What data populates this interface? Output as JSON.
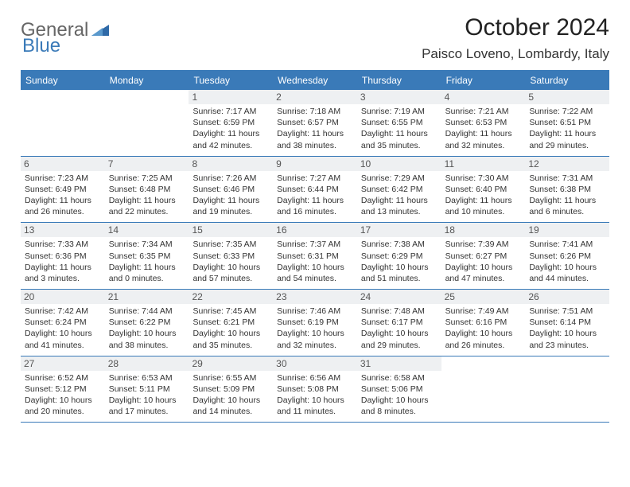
{
  "logo": {
    "general": "General",
    "blue": "Blue"
  },
  "title": "October 2024",
  "location": "Paisco Loveno, Lombardy, Italy",
  "colors": {
    "header_bg": "#3a7ab8",
    "header_text": "#ffffff",
    "daynum_bg": "#eef0f2",
    "border": "#3a7ab8",
    "text": "#333333"
  },
  "fonts": {
    "title_size": 30,
    "location_size": 17,
    "dow_size": 12,
    "daynum_size": 12,
    "body_size": 10.5
  },
  "days_of_week": [
    "Sunday",
    "Monday",
    "Tuesday",
    "Wednesday",
    "Thursday",
    "Friday",
    "Saturday"
  ],
  "weeks": [
    [
      {
        "day": "",
        "sunrise": "",
        "sunset": "",
        "daylight": ""
      },
      {
        "day": "",
        "sunrise": "",
        "sunset": "",
        "daylight": ""
      },
      {
        "day": "1",
        "sunrise": "Sunrise: 7:17 AM",
        "sunset": "Sunset: 6:59 PM",
        "daylight": "Daylight: 11 hours and 42 minutes."
      },
      {
        "day": "2",
        "sunrise": "Sunrise: 7:18 AM",
        "sunset": "Sunset: 6:57 PM",
        "daylight": "Daylight: 11 hours and 38 minutes."
      },
      {
        "day": "3",
        "sunrise": "Sunrise: 7:19 AM",
        "sunset": "Sunset: 6:55 PM",
        "daylight": "Daylight: 11 hours and 35 minutes."
      },
      {
        "day": "4",
        "sunrise": "Sunrise: 7:21 AM",
        "sunset": "Sunset: 6:53 PM",
        "daylight": "Daylight: 11 hours and 32 minutes."
      },
      {
        "day": "5",
        "sunrise": "Sunrise: 7:22 AM",
        "sunset": "Sunset: 6:51 PM",
        "daylight": "Daylight: 11 hours and 29 minutes."
      }
    ],
    [
      {
        "day": "6",
        "sunrise": "Sunrise: 7:23 AM",
        "sunset": "Sunset: 6:49 PM",
        "daylight": "Daylight: 11 hours and 26 minutes."
      },
      {
        "day": "7",
        "sunrise": "Sunrise: 7:25 AM",
        "sunset": "Sunset: 6:48 PM",
        "daylight": "Daylight: 11 hours and 22 minutes."
      },
      {
        "day": "8",
        "sunrise": "Sunrise: 7:26 AM",
        "sunset": "Sunset: 6:46 PM",
        "daylight": "Daylight: 11 hours and 19 minutes."
      },
      {
        "day": "9",
        "sunrise": "Sunrise: 7:27 AM",
        "sunset": "Sunset: 6:44 PM",
        "daylight": "Daylight: 11 hours and 16 minutes."
      },
      {
        "day": "10",
        "sunrise": "Sunrise: 7:29 AM",
        "sunset": "Sunset: 6:42 PM",
        "daylight": "Daylight: 11 hours and 13 minutes."
      },
      {
        "day": "11",
        "sunrise": "Sunrise: 7:30 AM",
        "sunset": "Sunset: 6:40 PM",
        "daylight": "Daylight: 11 hours and 10 minutes."
      },
      {
        "day": "12",
        "sunrise": "Sunrise: 7:31 AM",
        "sunset": "Sunset: 6:38 PM",
        "daylight": "Daylight: 11 hours and 6 minutes."
      }
    ],
    [
      {
        "day": "13",
        "sunrise": "Sunrise: 7:33 AM",
        "sunset": "Sunset: 6:36 PM",
        "daylight": "Daylight: 11 hours and 3 minutes."
      },
      {
        "day": "14",
        "sunrise": "Sunrise: 7:34 AM",
        "sunset": "Sunset: 6:35 PM",
        "daylight": "Daylight: 11 hours and 0 minutes."
      },
      {
        "day": "15",
        "sunrise": "Sunrise: 7:35 AM",
        "sunset": "Sunset: 6:33 PM",
        "daylight": "Daylight: 10 hours and 57 minutes."
      },
      {
        "day": "16",
        "sunrise": "Sunrise: 7:37 AM",
        "sunset": "Sunset: 6:31 PM",
        "daylight": "Daylight: 10 hours and 54 minutes."
      },
      {
        "day": "17",
        "sunrise": "Sunrise: 7:38 AM",
        "sunset": "Sunset: 6:29 PM",
        "daylight": "Daylight: 10 hours and 51 minutes."
      },
      {
        "day": "18",
        "sunrise": "Sunrise: 7:39 AM",
        "sunset": "Sunset: 6:27 PM",
        "daylight": "Daylight: 10 hours and 47 minutes."
      },
      {
        "day": "19",
        "sunrise": "Sunrise: 7:41 AM",
        "sunset": "Sunset: 6:26 PM",
        "daylight": "Daylight: 10 hours and 44 minutes."
      }
    ],
    [
      {
        "day": "20",
        "sunrise": "Sunrise: 7:42 AM",
        "sunset": "Sunset: 6:24 PM",
        "daylight": "Daylight: 10 hours and 41 minutes."
      },
      {
        "day": "21",
        "sunrise": "Sunrise: 7:44 AM",
        "sunset": "Sunset: 6:22 PM",
        "daylight": "Daylight: 10 hours and 38 minutes."
      },
      {
        "day": "22",
        "sunrise": "Sunrise: 7:45 AM",
        "sunset": "Sunset: 6:21 PM",
        "daylight": "Daylight: 10 hours and 35 minutes."
      },
      {
        "day": "23",
        "sunrise": "Sunrise: 7:46 AM",
        "sunset": "Sunset: 6:19 PM",
        "daylight": "Daylight: 10 hours and 32 minutes."
      },
      {
        "day": "24",
        "sunrise": "Sunrise: 7:48 AM",
        "sunset": "Sunset: 6:17 PM",
        "daylight": "Daylight: 10 hours and 29 minutes."
      },
      {
        "day": "25",
        "sunrise": "Sunrise: 7:49 AM",
        "sunset": "Sunset: 6:16 PM",
        "daylight": "Daylight: 10 hours and 26 minutes."
      },
      {
        "day": "26",
        "sunrise": "Sunrise: 7:51 AM",
        "sunset": "Sunset: 6:14 PM",
        "daylight": "Daylight: 10 hours and 23 minutes."
      }
    ],
    [
      {
        "day": "27",
        "sunrise": "Sunrise: 6:52 AM",
        "sunset": "Sunset: 5:12 PM",
        "daylight": "Daylight: 10 hours and 20 minutes."
      },
      {
        "day": "28",
        "sunrise": "Sunrise: 6:53 AM",
        "sunset": "Sunset: 5:11 PM",
        "daylight": "Daylight: 10 hours and 17 minutes."
      },
      {
        "day": "29",
        "sunrise": "Sunrise: 6:55 AM",
        "sunset": "Sunset: 5:09 PM",
        "daylight": "Daylight: 10 hours and 14 minutes."
      },
      {
        "day": "30",
        "sunrise": "Sunrise: 6:56 AM",
        "sunset": "Sunset: 5:08 PM",
        "daylight": "Daylight: 10 hours and 11 minutes."
      },
      {
        "day": "31",
        "sunrise": "Sunrise: 6:58 AM",
        "sunset": "Sunset: 5:06 PM",
        "daylight": "Daylight: 10 hours and 8 minutes."
      },
      {
        "day": "",
        "sunrise": "",
        "sunset": "",
        "daylight": ""
      },
      {
        "day": "",
        "sunrise": "",
        "sunset": "",
        "daylight": ""
      }
    ]
  ]
}
